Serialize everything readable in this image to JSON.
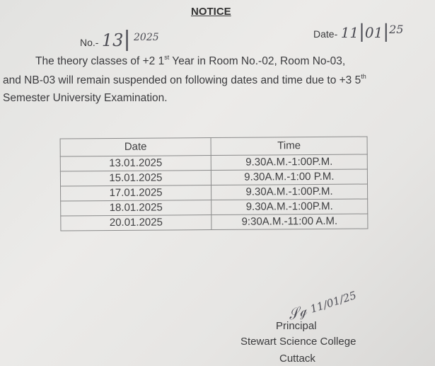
{
  "notice": {
    "title": "NOTICE",
    "number_label": "No.-",
    "number_value": "13",
    "number_year": "2025",
    "date_label": "Date-",
    "date_day": "11",
    "date_month": "01",
    "date_year": "25",
    "paragraph": {
      "line1_a": "The theory classes of +2 1",
      "line1_sup": "st",
      "line1_b": " Year in Room No.-02, Room No-03,",
      "line2_a": "and NB-03 will remain suspended on following dates and time due to +3 5",
      "line2_sup": "th",
      "line3": "Semester University Examination."
    }
  },
  "schedule": {
    "headers": [
      "Date",
      "Time"
    ],
    "rows": [
      [
        "13.01.2025",
        "9.30A.M.-1:00P.M."
      ],
      [
        "15.01.2025",
        "9.30A.M.-1:00 P.M."
      ],
      [
        "17.01.2025",
        "9.30A.M.-1:00P.M."
      ],
      [
        "18.01.2025",
        "9.30A.M.-1:00P.M."
      ],
      [
        "20.01.2025",
        "9:30A.M.-11:00 A.M."
      ]
    ]
  },
  "signature": {
    "handwritten": "11/01/25"
  },
  "footer": {
    "designation": "Principal",
    "institution": "Stewart Science College",
    "city": "Cuttack"
  }
}
